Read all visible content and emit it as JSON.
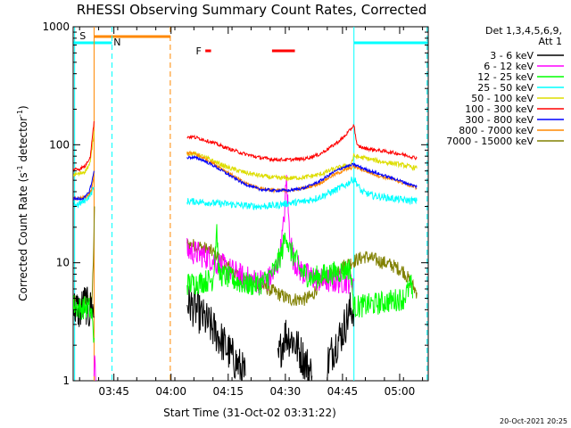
{
  "chart_data": {
    "type": "line",
    "title": "RHESSI Observing Summary Count Rates, Corrected",
    "xlabel": "Start Time (31-Oct-02 03:31:22)",
    "ylabel": "Corrected Count Rate (s",
    "ylabel_sup1": "-1",
    "ylabel_mid": " detector",
    "ylabel_sup2": "-1",
    "ylabel_end": ")",
    "y_scale": "log",
    "ylim": [
      1,
      1000
    ],
    "xlim_minutes": [
      3.31,
      96.5
    ],
    "x_ticks": [
      {
        "minute": 14,
        "label": "03:45"
      },
      {
        "minute": 29,
        "label": "04:00"
      },
      {
        "minute": 44,
        "label": "04:15"
      },
      {
        "minute": 59,
        "label": "04:30"
      },
      {
        "minute": 74,
        "label": "04:45"
      },
      {
        "minute": 89,
        "label": "05:00"
      }
    ],
    "y_ticks": [
      {
        "value": 1,
        "label": "1"
      },
      {
        "value": 10,
        "label": "10"
      },
      {
        "value": 100,
        "label": "100"
      },
      {
        "value": 1000,
        "label": "1000"
      }
    ],
    "legend": {
      "position": "outside-right",
      "header": "Det 1,3,4,5,6,9,",
      "header2": "Att 1"
    },
    "series": [
      {
        "name": "3 - 6 keV",
        "color": "#000000",
        "segments": [
          [
            [
              3.4,
              4.2
            ],
            [
              5,
              3.9
            ],
            [
              6.5,
              4.6
            ],
            [
              7.5,
              3.8
            ],
            [
              8.2,
              4.4
            ],
            [
              8.8,
              3.5
            ]
          ],
          [
            [
              33.2,
              4.6
            ],
            [
              35,
              4.2
            ],
            [
              37,
              3.5
            ],
            [
              39,
              3
            ],
            [
              41,
              2.5
            ],
            [
              43,
              2
            ],
            [
              45,
              1.6
            ],
            [
              47,
              1.3
            ],
            [
              48.5,
              1.1
            ]
          ],
          [
            [
              57,
              1.4
            ],
            [
              58,
              2
            ],
            [
              59,
              2.5
            ],
            [
              61,
              2.2
            ],
            [
              63,
              1.7
            ],
            [
              65,
              1.3
            ],
            [
              66,
              1.1
            ]
          ],
          [
            [
              70,
              1.4
            ],
            [
              72,
              2
            ],
            [
              74,
              2.6
            ],
            [
              75,
              3.2
            ],
            [
              76,
              3.9
            ],
            [
              77,
              4.2
            ]
          ]
        ]
      },
      {
        "name": "6 - 12 keV",
        "color": "#ff00ff",
        "segments": [
          [
            [
              8.8,
              1
            ],
            [
              9,
              1.8
            ],
            [
              9.2,
              1
            ]
          ],
          [
            [
              33.2,
              12.7
            ],
            [
              36,
              12
            ],
            [
              39,
              11
            ],
            [
              42,
              9.5
            ],
            [
              45,
              8.5
            ],
            [
              48,
              7.5
            ],
            [
              51,
              7
            ],
            [
              54,
              7
            ],
            [
              56,
              8
            ],
            [
              57.5,
              11
            ],
            [
              58.5,
              20
            ],
            [
              59.3,
              50
            ],
            [
              60,
              20
            ],
            [
              61,
              11
            ],
            [
              62.5,
              9
            ],
            [
              64,
              8
            ],
            [
              66,
              7.5
            ],
            [
              69,
              7
            ],
            [
              72,
              7
            ],
            [
              75,
              7
            ],
            [
              77,
              7
            ]
          ]
        ]
      },
      {
        "name": "12 - 25 keV",
        "color": "#00ff00",
        "segments": [
          [
            [
              3.4,
              4.4
            ],
            [
              5,
              4.1
            ],
            [
              6.5,
              4.2
            ],
            [
              7.5,
              4.1
            ],
            [
              8.2,
              3.6
            ],
            [
              8.6,
              2.5
            ],
            [
              8.8,
              2.3
            ]
          ],
          [
            [
              33.2,
              6.6
            ],
            [
              36,
              6.8
            ],
            [
              38,
              7
            ],
            [
              40,
              7.2
            ],
            [
              41,
              20
            ],
            [
              41.5,
              8
            ],
            [
              44,
              7.5
            ],
            [
              47,
              6.8
            ],
            [
              50,
              6.5
            ],
            [
              53,
              6.7
            ],
            [
              56,
              8.5
            ],
            [
              58,
              12
            ],
            [
              59.2,
              18
            ],
            [
              60,
              13
            ],
            [
              61.5,
              11
            ],
            [
              63,
              8.5
            ],
            [
              66,
              7.4
            ],
            [
              70,
              8
            ],
            [
              74,
              8.5
            ],
            [
              76,
              9
            ],
            [
              77,
              4.2
            ],
            [
              83,
              4.5
            ],
            [
              90,
              5
            ],
            [
              92,
              6.5
            ],
            [
              92.4,
              5
            ]
          ]
        ]
      },
      {
        "name": "25 - 50 keV",
        "color": "#00ffff",
        "segments": [
          [
            [
              3.4,
              31.2
            ],
            [
              4.5,
              31
            ],
            [
              6,
              33
            ],
            [
              7.5,
              37
            ],
            [
              8.8,
              43
            ]
          ],
          [
            [
              33.2,
              33.2
            ],
            [
              36,
              33
            ],
            [
              40,
              32
            ],
            [
              44,
              31.5
            ],
            [
              48,
              30.5
            ],
            [
              52,
              30
            ],
            [
              56,
              30.5
            ],
            [
              60,
              32
            ],
            [
              64,
              33
            ],
            [
              68,
              36
            ],
            [
              72,
              41
            ],
            [
              75,
              46
            ],
            [
              77,
              52
            ],
            [
              79,
              40
            ],
            [
              82,
              37
            ],
            [
              86,
              35.5
            ],
            [
              90,
              34
            ],
            [
              93.5,
              33.4
            ]
          ]
        ]
      },
      {
        "name": "50 - 100 keV",
        "color": "#dddd00",
        "segments": [
          [
            [
              3.4,
              56.1
            ],
            [
              5,
              56.5
            ],
            [
              6.5,
              60
            ],
            [
              7.8,
              70
            ],
            [
              8.8,
              130
            ]
          ],
          [
            [
              33.2,
              85.2
            ],
            [
              35,
              84
            ],
            [
              37,
              80
            ],
            [
              40,
              73
            ],
            [
              44,
              64
            ],
            [
              48,
              58.5
            ],
            [
              52,
              55
            ],
            [
              56,
              52.5
            ],
            [
              60,
              52
            ],
            [
              64,
              53
            ],
            [
              68,
              56
            ],
            [
              71,
              61
            ],
            [
              74,
              65.5
            ],
            [
              76,
              66.5
            ],
            [
              77,
              80
            ],
            [
              80,
              77
            ],
            [
              84,
              72
            ],
            [
              88,
              69
            ],
            [
              91,
              66
            ],
            [
              93.5,
              63
            ]
          ]
        ]
      },
      {
        "name": "100 - 300 keV",
        "color": "#ff0000",
        "segments": [
          [
            [
              3.4,
              62.2
            ],
            [
              5,
              62.4
            ],
            [
              6.5,
              66
            ],
            [
              7.8,
              80
            ],
            [
              8.8,
              158
            ]
          ],
          [
            [
              33.2,
              117
            ],
            [
              35,
              116
            ],
            [
              37,
              112
            ],
            [
              40,
              104
            ],
            [
              44,
              93
            ],
            [
              48,
              84
            ],
            [
              52,
              78
            ],
            [
              56,
              75
            ],
            [
              60,
              74.6
            ],
            [
              64,
              76
            ],
            [
              68,
              83
            ],
            [
              71,
              96
            ],
            [
              74,
              113
            ],
            [
              76,
              133
            ],
            [
              77,
              148
            ],
            [
              77.8,
              98
            ],
            [
              80,
              93
            ],
            [
              84,
              89
            ],
            [
              88,
              85
            ],
            [
              91,
              81
            ],
            [
              93.5,
              77
            ]
          ]
        ]
      },
      {
        "name": "300 - 800 keV",
        "color": "#0000ff",
        "segments": [
          [
            [
              3.4,
              35
            ],
            [
              5,
              34.6
            ],
            [
              6.5,
              36
            ],
            [
              7.5,
              40
            ],
            [
              8.2,
              48
            ],
            [
              8.8,
              60
            ]
          ],
          [
            [
              33.2,
              78
            ],
            [
              35,
              78
            ],
            [
              37,
              75
            ],
            [
              40,
              67
            ],
            [
              44,
              56
            ],
            [
              48,
              47
            ],
            [
              52,
              42
            ],
            [
              56,
              41
            ],
            [
              60,
              41
            ],
            [
              64,
              43
            ],
            [
              68,
              49
            ],
            [
              71,
              57
            ],
            [
              74,
              64
            ],
            [
              77,
              68
            ],
            [
              80,
              62
            ],
            [
              84,
              56
            ],
            [
              88,
              51
            ],
            [
              91,
              47
            ],
            [
              93.5,
              44
            ]
          ]
        ]
      },
      {
        "name": "800 - 7000 keV",
        "color": "#ff8800",
        "segments": [
          [
            [
              3.4,
              35
            ],
            [
              5,
              34.8
            ],
            [
              6.5,
              36
            ],
            [
              7.5,
              38
            ],
            [
              8.2,
              42
            ],
            [
              8.8,
              55
            ]
          ],
          [
            [
              33.2,
              85.7
            ],
            [
              35,
              84
            ],
            [
              37,
              79
            ],
            [
              40,
              70
            ],
            [
              44,
              58
            ],
            [
              48,
              48
            ],
            [
              52,
              43
            ],
            [
              56,
              41
            ],
            [
              60,
              41
            ],
            [
              64,
              43
            ],
            [
              68,
              47
            ],
            [
              71,
              54
            ],
            [
              74,
              60
            ],
            [
              76,
              63
            ],
            [
              77,
              65.7
            ],
            [
              80,
              60
            ],
            [
              84,
              54
            ],
            [
              88,
              50
            ],
            [
              91,
              46
            ],
            [
              93.5,
              43
            ]
          ]
        ]
      },
      {
        "name": "7000 - 15000 keV",
        "color": "#808000",
        "segments": [
          [
            [
              3.4,
              4.7
            ],
            [
              5,
              4.3
            ],
            [
              6.5,
              4.8
            ],
            [
              7.5,
              4.9
            ],
            [
              8.2,
              4.8
            ],
            [
              8.6,
              9
            ],
            [
              8.9,
              30
            ]
          ],
          [
            [
              33.2,
              14.4
            ],
            [
              35,
              14
            ],
            [
              37,
              13.6
            ],
            [
              40,
              12.3
            ],
            [
              43,
              10
            ],
            [
              46,
              8
            ],
            [
              49,
              7
            ],
            [
              52,
              6.6
            ],
            [
              56,
              5.7
            ],
            [
              60,
              4.9
            ],
            [
              64,
              4.9
            ],
            [
              66,
              5.2
            ],
            [
              68,
              6.8
            ],
            [
              72,
              8.5
            ],
            [
              75,
              9.7
            ],
            [
              78,
              10.7
            ],
            [
              80,
              11.3
            ],
            [
              83,
              10.5
            ],
            [
              87,
              9.5
            ],
            [
              90,
              8.5
            ],
            [
              93.5,
              5.6
            ]
          ]
        ]
      }
    ],
    "annotations": [
      {
        "label": "S",
        "color": "#ff8800"
      },
      {
        "label": "N",
        "color": "#00ffff"
      },
      {
        "label": "F",
        "color": "#ff0000"
      }
    ],
    "footer_stamp": "20-Oct-2021 20:25"
  }
}
